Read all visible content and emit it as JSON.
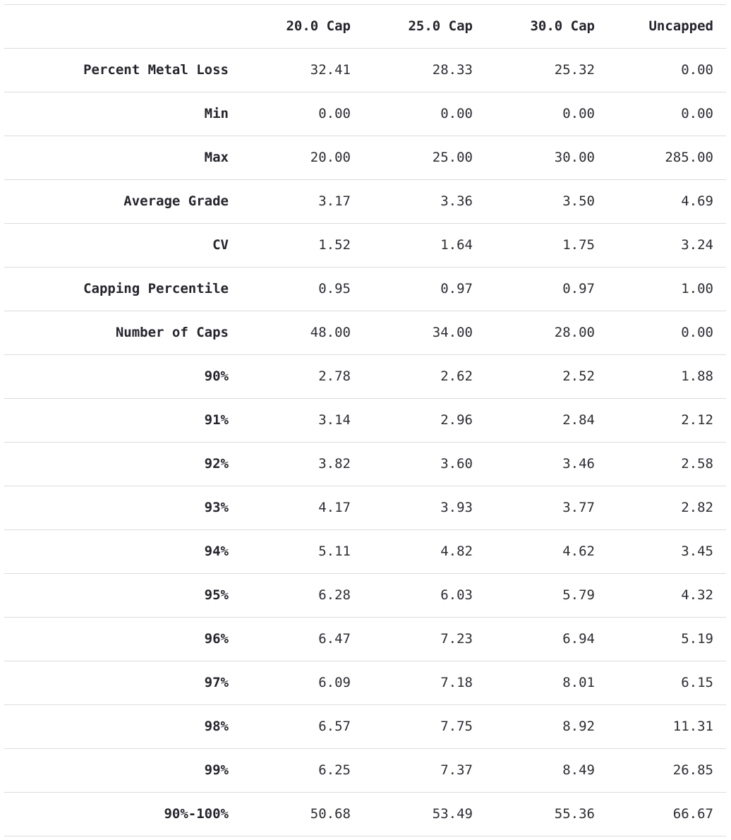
{
  "table": {
    "corner": "",
    "columns": [
      "20.0 Cap",
      "25.0 Cap",
      "30.0 Cap",
      "Uncapped"
    ],
    "rows": [
      {
        "label": "Percent Metal Loss",
        "values": [
          "32.41",
          "28.33",
          "25.32",
          "0.00"
        ]
      },
      {
        "label": "Min",
        "values": [
          "0.00",
          "0.00",
          "0.00",
          "0.00"
        ]
      },
      {
        "label": "Max",
        "values": [
          "20.00",
          "25.00",
          "30.00",
          "285.00"
        ]
      },
      {
        "label": "Average Grade",
        "values": [
          "3.17",
          "3.36",
          "3.50",
          "4.69"
        ]
      },
      {
        "label": "CV",
        "values": [
          "1.52",
          "1.64",
          "1.75",
          "3.24"
        ]
      },
      {
        "label": "Capping Percentile",
        "values": [
          "0.95",
          "0.97",
          "0.97",
          "1.00"
        ]
      },
      {
        "label": "Number of Caps",
        "values": [
          "48.00",
          "34.00",
          "28.00",
          "0.00"
        ]
      },
      {
        "label": "90%",
        "values": [
          "2.78",
          "2.62",
          "2.52",
          "1.88"
        ]
      },
      {
        "label": "91%",
        "values": [
          "3.14",
          "2.96",
          "2.84",
          "2.12"
        ]
      },
      {
        "label": "92%",
        "values": [
          "3.82",
          "3.60",
          "3.46",
          "2.58"
        ]
      },
      {
        "label": "93%",
        "values": [
          "4.17",
          "3.93",
          "3.77",
          "2.82"
        ]
      },
      {
        "label": "94%",
        "values": [
          "5.11",
          "4.82",
          "4.62",
          "3.45"
        ]
      },
      {
        "label": "95%",
        "values": [
          "6.28",
          "6.03",
          "5.79",
          "4.32"
        ]
      },
      {
        "label": "96%",
        "values": [
          "6.47",
          "7.23",
          "6.94",
          "5.19"
        ]
      },
      {
        "label": "97%",
        "values": [
          "6.09",
          "7.18",
          "8.01",
          "6.15"
        ]
      },
      {
        "label": "98%",
        "values": [
          "6.57",
          "7.75",
          "8.92",
          "11.31"
        ]
      },
      {
        "label": "99%",
        "values": [
          "6.25",
          "7.37",
          "8.49",
          "26.85"
        ]
      },
      {
        "label": "90%-100%",
        "values": [
          "50.68",
          "53.49",
          "55.36",
          "66.67"
        ]
      }
    ]
  }
}
